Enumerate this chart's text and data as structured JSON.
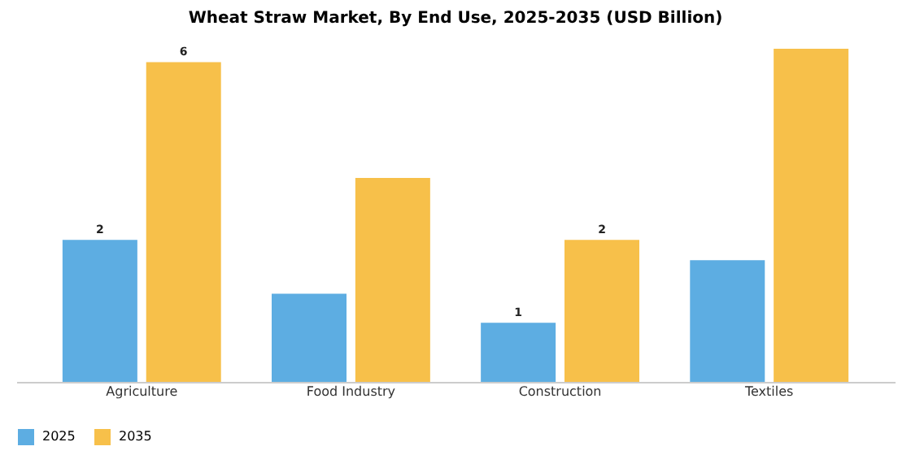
{
  "chart_data": {
    "type": "bar",
    "title": "Wheat Straw Market, By End Use, 2025-2035 (USD Billion)",
    "tick_labels": "x",
    "legend": "bottom",
    "grid": false,
    "categories": [
      "Agriculture",
      "Food Industry",
      "Construction",
      "Textiles"
    ],
    "series": [
      {
        "name": "2025",
        "color": "#5dade2",
        "values": [
          2.45,
          1.52,
          1.02,
          2.1
        ],
        "value_labels": [
          "2",
          null,
          "1",
          null
        ]
      },
      {
        "name": "2035",
        "color": "#f7c04a",
        "values": [
          5.52,
          3.52,
          2.45,
          5.75
        ],
        "value_labels": [
          "6",
          null,
          "2",
          null
        ]
      }
    ]
  }
}
